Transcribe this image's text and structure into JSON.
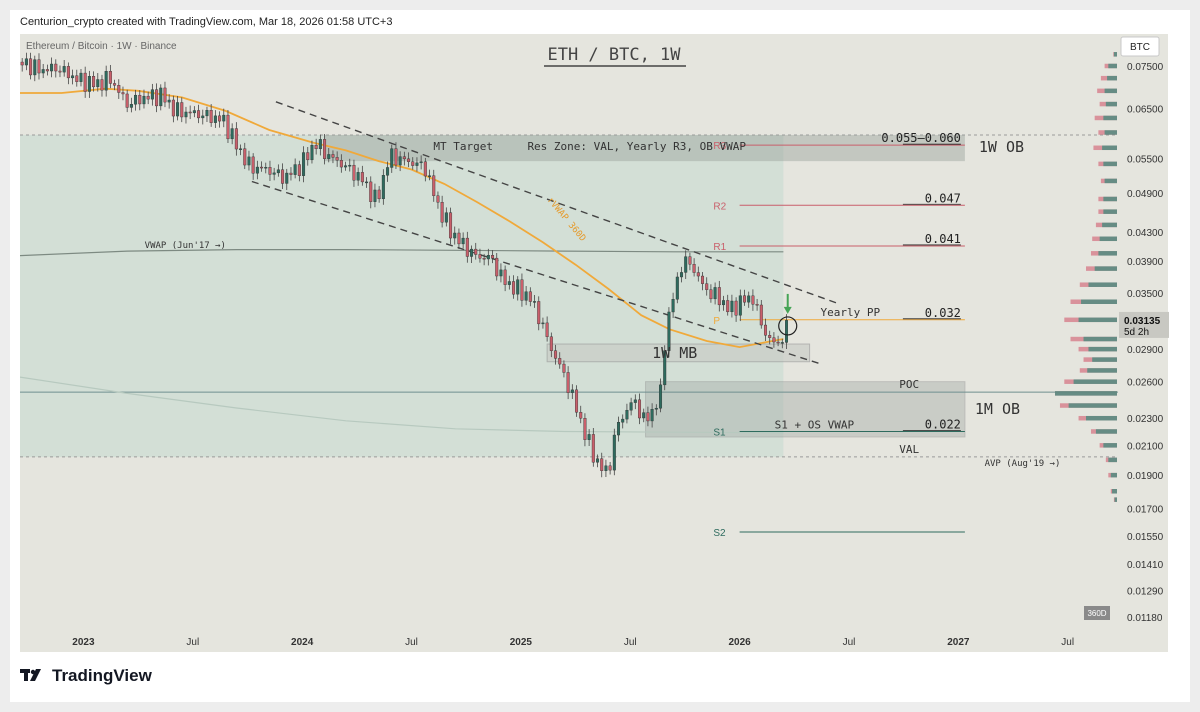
{
  "header": {
    "credit": "Centurion_crypto created with TradingView.com, Mar 18, 2026 01:58 UTC+3"
  },
  "brand": {
    "name": "TradingView"
  },
  "chart_data": {
    "type": "candlestick",
    "title": "ETH / BTC, 1W",
    "symbol_label": "Ethereum / Bitcoin · 1W · Binance",
    "currency": "BTC",
    "y_scale": "log",
    "ylim": [
      0.0113,
      0.0835
    ],
    "y_ticks": [
      0.075,
      0.065,
      0.055,
      0.049,
      0.043,
      0.039,
      0.035,
      0.029,
      0.026,
      0.023,
      0.021,
      0.019,
      0.017,
      0.0155,
      0.0141,
      0.0129,
      0.0118
    ],
    "y_tick_labels": [
      "0.07500",
      "0.06500",
      "0.05500",
      "0.04900",
      "0.04300",
      "0.03900",
      "0.03500",
      "0.02900",
      "0.02600",
      "0.02300",
      "0.02100",
      "0.01900",
      "0.01700",
      "0.01550",
      "0.01410",
      "0.01290",
      "0.01180"
    ],
    "x_ticks": [
      "2023",
      "Jul",
      "2024",
      "Jul",
      "2025",
      "Jul",
      "2026",
      "Jul",
      "2027",
      "Jul"
    ],
    "x_tick_year": [
      2023.0,
      2023.5,
      2024.0,
      2024.5,
      2025.0,
      2025.5,
      2026.0,
      2026.5,
      2027.0,
      2027.5
    ],
    "xlim": [
      2022.71,
      2027.73
    ],
    "price_badge": {
      "value": "0.03135",
      "countdown": "5d 2h",
      "value_num": 0.03135
    },
    "resolution_badge": "360D",
    "close_series": {
      "points": [
        [
          2022.72,
          0.076
        ],
        [
          2022.8,
          0.074
        ],
        [
          2022.88,
          0.0745
        ],
        [
          2022.98,
          0.0715
        ],
        [
          2023.06,
          0.0705
        ],
        [
          2023.12,
          0.072
        ],
        [
          2023.2,
          0.066
        ],
        [
          2023.28,
          0.0675
        ],
        [
          2023.36,
          0.068
        ],
        [
          2023.42,
          0.0645
        ],
        [
          2023.5,
          0.064
        ],
        [
          2023.56,
          0.0635
        ],
        [
          2023.64,
          0.0625
        ],
        [
          2023.7,
          0.0575
        ],
        [
          2023.76,
          0.0535
        ],
        [
          2023.84,
          0.053
        ],
        [
          2023.92,
          0.0515
        ],
        [
          2024.0,
          0.054
        ],
        [
          2024.06,
          0.058
        ],
        [
          2024.12,
          0.0555
        ],
        [
          2024.2,
          0.0535
        ],
        [
          2024.28,
          0.051
        ],
        [
          2024.34,
          0.0475
        ],
        [
          2024.4,
          0.0555
        ],
        [
          2024.48,
          0.0545
        ],
        [
          2024.56,
          0.0535
        ],
        [
          2024.62,
          0.047
        ],
        [
          2024.68,
          0.043
        ],
        [
          2024.74,
          0.041
        ],
        [
          2024.8,
          0.0395
        ],
        [
          2024.86,
          0.0395
        ],
        [
          2024.92,
          0.0365
        ],
        [
          2024.98,
          0.0355
        ],
        [
          2025.04,
          0.0345
        ],
        [
          2025.08,
          0.0325
        ],
        [
          2025.14,
          0.029
        ],
        [
          2025.2,
          0.0265
        ],
        [
          2025.26,
          0.0235
        ],
        [
          2025.3,
          0.0215
        ],
        [
          2025.36,
          0.0195
        ],
        [
          2025.4,
          0.0192
        ],
        [
          2025.44,
          0.0225
        ],
        [
          2025.48,
          0.0235
        ],
        [
          2025.52,
          0.0245
        ],
        [
          2025.56,
          0.0228
        ],
        [
          2025.6,
          0.0235
        ],
        [
          2025.64,
          0.025
        ],
        [
          2025.66,
          0.0305
        ],
        [
          2025.7,
          0.035
        ],
        [
          2025.74,
          0.039
        ],
        [
          2025.78,
          0.0385
        ],
        [
          2025.84,
          0.0355
        ],
        [
          2025.9,
          0.0345
        ],
        [
          2025.96,
          0.033
        ],
        [
          2026.0,
          0.034
        ],
        [
          2026.06,
          0.0345
        ],
        [
          2026.1,
          0.0315
        ],
        [
          2026.14,
          0.0298
        ],
        [
          2026.17,
          0.0295
        ],
        [
          2026.2,
          0.0303
        ],
        [
          2026.22,
          0.03135
        ]
      ],
      "candle_step": 0.0192,
      "up_color": "#2e6b5e",
      "down_color": "#c95f6b"
    },
    "ma_series": {
      "name": "rVWAP 360D",
      "color": "#f0a93a",
      "points": [
        [
          2022.71,
          0.0685
        ],
        [
          2022.9,
          0.0685
        ],
        [
          2023.1,
          0.0695
        ],
        [
          2023.25,
          0.069
        ],
        [
          2023.45,
          0.0675
        ],
        [
          2023.65,
          0.0645
        ],
        [
          2023.85,
          0.0605
        ],
        [
          2024.05,
          0.058
        ],
        [
          2024.2,
          0.0565
        ],
        [
          2024.35,
          0.0545
        ],
        [
          2024.5,
          0.053
        ],
        [
          2024.65,
          0.0505
        ],
        [
          2024.8,
          0.0475
        ],
        [
          2024.95,
          0.0445
        ],
        [
          2025.1,
          0.0415
        ],
        [
          2025.25,
          0.0385
        ],
        [
          2025.4,
          0.0355
        ],
        [
          2025.55,
          0.0325
        ],
        [
          2025.68,
          0.031
        ],
        [
          2025.85,
          0.0298
        ],
        [
          2026.0,
          0.0292
        ],
        [
          2026.15,
          0.0298
        ],
        [
          2026.2,
          0.03
        ]
      ]
    },
    "vwap_anchor": {
      "label": "VWAP (Jun'17 →)",
      "color": "#7d8a82",
      "points": [
        [
          2022.71,
          0.0397
        ],
        [
          2023.2,
          0.0403
        ],
        [
          2023.7,
          0.0405
        ],
        [
          2024.2,
          0.0405
        ],
        [
          2024.7,
          0.0404
        ],
        [
          2025.2,
          0.0403
        ],
        [
          2025.7,
          0.0402
        ],
        [
          2026.2,
          0.0402
        ]
      ]
    },
    "avp_anchor": {
      "label": "AVP (Aug'19 →)",
      "points": [
        [
          2022.71,
          0.0264
        ],
        [
          2023.2,
          0.025
        ],
        [
          2023.7,
          0.0238
        ],
        [
          2024.2,
          0.0228
        ],
        [
          2024.7,
          0.0222
        ],
        [
          2025.2,
          0.022
        ],
        [
          2026.2,
          0.0219
        ]
      ]
    },
    "channel_lines": [
      {
        "from": [
          2023.88,
          0.0665
        ],
        "to": [
          2026.45,
          0.0338
        ]
      },
      {
        "from": [
          2023.77,
          0.0509
        ],
        "to": [
          2026.37,
          0.0276
        ]
      }
    ],
    "levels": [
      {
        "name": "R3",
        "label": "0.055–0.060",
        "value": 0.0575,
        "color": "#c95f6b"
      },
      {
        "name": "R2",
        "label": "0.047",
        "value": 0.047,
        "color": "#c95f6b"
      },
      {
        "name": "R1",
        "label": "0.041",
        "value": 0.041,
        "color": "#c95f6b"
      },
      {
        "name": "P",
        "label": "0.032",
        "value": 0.032,
        "color": "#f0a93a"
      },
      {
        "name": "S1",
        "label": "0.022",
        "value": 0.022,
        "color": "#2e6b5e"
      },
      {
        "name": "S2",
        "label": "",
        "value": 0.0157,
        "color": "#2e6b5e"
      }
    ],
    "zones": [
      {
        "name": "MT Target",
        "top": 0.0595,
        "bottom": 0.0545
      },
      {
        "name": "1W MB",
        "top": 0.0295,
        "bottom": 0.0278
      },
      {
        "name": "1M OB",
        "top": 0.026,
        "bottom": 0.0216
      }
    ],
    "poc": {
      "label": "POC",
      "value": 0.0251
    },
    "val": {
      "label": "VAL",
      "value": 0.0202
    },
    "vah": {
      "value": 0.0595
    },
    "annotations": {
      "mt_target": "MT Target",
      "res_zone": "Res Zone: VAL, Yearly R3, OB VWAP",
      "rvwap": "rVWAP 360D",
      "yearly_pp": "Yearly PP",
      "s1_note": "S1 + OS VWAP",
      "ob_1w": "1W OB",
      "ob_1m": "1M OB",
      "mb_1w": "1W MB"
    },
    "volume_profile": {
      "up_color": "#3f8a7c",
      "down_color": "#d7848f",
      "bins": [
        [
          0.078,
          0.05,
          0.06
        ],
        [
          0.075,
          0.14,
          0.2
        ],
        [
          0.072,
          0.16,
          0.26
        ],
        [
          0.069,
          0.2,
          0.32
        ],
        [
          0.066,
          0.18,
          0.28
        ],
        [
          0.063,
          0.22,
          0.36
        ],
        [
          0.06,
          0.2,
          0.3
        ],
        [
          0.057,
          0.24,
          0.38
        ],
        [
          0.054,
          0.22,
          0.3
        ],
        [
          0.051,
          0.2,
          0.26
        ],
        [
          0.048,
          0.22,
          0.3
        ],
        [
          0.046,
          0.22,
          0.3
        ],
        [
          0.044,
          0.24,
          0.34
        ],
        [
          0.042,
          0.28,
          0.4
        ],
        [
          0.04,
          0.3,
          0.42
        ],
        [
          0.038,
          0.36,
          0.5
        ],
        [
          0.036,
          0.46,
          0.6
        ],
        [
          0.034,
          0.58,
          0.75
        ],
        [
          0.032,
          0.62,
          0.85
        ],
        [
          0.03,
          0.54,
          0.75
        ],
        [
          0.029,
          0.46,
          0.62
        ],
        [
          0.028,
          0.4,
          0.54
        ],
        [
          0.027,
          0.48,
          0.6
        ],
        [
          0.026,
          0.7,
          0.85
        ],
        [
          0.025,
          1.0,
          1.0
        ],
        [
          0.024,
          0.78,
          0.92
        ],
        [
          0.023,
          0.5,
          0.62
        ],
        [
          0.022,
          0.34,
          0.42
        ],
        [
          0.021,
          0.22,
          0.28
        ],
        [
          0.02,
          0.14,
          0.18
        ],
        [
          0.019,
          0.1,
          0.14
        ],
        [
          0.018,
          0.08,
          0.1
        ],
        [
          0.0175,
          0.04,
          0.05
        ]
      ]
    }
  }
}
